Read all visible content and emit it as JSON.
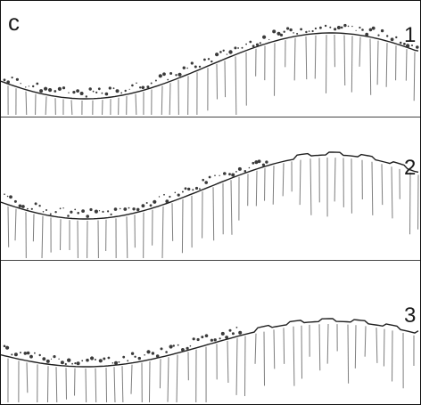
{
  "figure": {
    "letter": "c",
    "panels": [
      {
        "number": "1"
      },
      {
        "number": "2"
      },
      {
        "number": "3"
      }
    ]
  },
  "colors": {
    "line": "#1f1f1f",
    "roots": "#7d7d7d",
    "stones": "#3a3a3a",
    "divider": "#444444"
  }
}
